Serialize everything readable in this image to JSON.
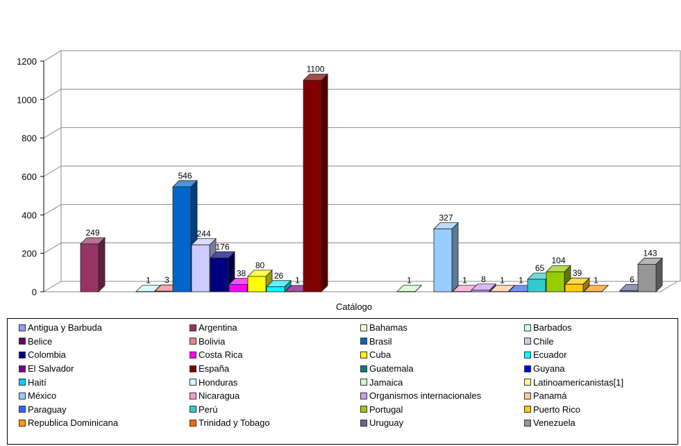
{
  "chart_data": {
    "type": "bar",
    "xlabel": "Catálogo",
    "ylabel": "",
    "ylim": [
      0,
      1200
    ],
    "yticks": [
      0,
      200,
      400,
      600,
      800,
      1000,
      1200
    ],
    "grid": true,
    "legend_position": "bottom",
    "series": [
      {
        "name": "Antigua y Barbuda",
        "value": 0,
        "color": "#9999FF",
        "label": ""
      },
      {
        "name": "Argentina",
        "value": 249,
        "color": "#993366",
        "label": "249"
      },
      {
        "name": "Bahamas",
        "value": 0,
        "color": "#FFFFCC",
        "label": ""
      },
      {
        "name": "Barbados",
        "value": 1,
        "color": "#CCFFFF",
        "label": "1"
      },
      {
        "name": "Belice",
        "value": 0,
        "color": "#660066",
        "label": ""
      },
      {
        "name": "Bolivia",
        "value": 3,
        "color": "#FF8080",
        "label": "3"
      },
      {
        "name": "Brasil",
        "value": 546,
        "color": "#0066CC",
        "label": "546"
      },
      {
        "name": "Chile",
        "value": 244,
        "color": "#CCCCFF",
        "label": "244"
      },
      {
        "name": "Colombia",
        "value": 176,
        "color": "#000080",
        "label": "176"
      },
      {
        "name": "Costa Rica",
        "value": 38,
        "color": "#FF00FF",
        "label": "38"
      },
      {
        "name": "Cuba",
        "value": 80,
        "color": "#FFFF00",
        "label": "80"
      },
      {
        "name": "Ecuador",
        "value": 26,
        "color": "#00FFFF",
        "label": "26"
      },
      {
        "name": "El Salvador",
        "value": 1,
        "color": "#800080",
        "label": "1"
      },
      {
        "name": "España",
        "value": 1100,
        "color": "#800000",
        "label": "1100"
      },
      {
        "name": "Guatemala",
        "value": 0,
        "color": "#008080",
        "label": ""
      },
      {
        "name": "Guyana",
        "value": 0,
        "color": "#0000FF",
        "label": ""
      },
      {
        "name": "Haití",
        "value": 0,
        "color": "#00CCFF",
        "label": ""
      },
      {
        "name": "Honduras",
        "value": 0,
        "color": "#CCFFFF",
        "label": ""
      },
      {
        "name": "Jamaica",
        "value": 1,
        "color": "#CCFFCC",
        "label": "1"
      },
      {
        "name": "Latinoamericanistas[1]",
        "value": 0,
        "color": "#FFFF99",
        "label": ""
      },
      {
        "name": "México",
        "value": 327,
        "color": "#99CCFF",
        "label": "327"
      },
      {
        "name": "Nicaragua",
        "value": 1,
        "color": "#FF99CC",
        "label": "1"
      },
      {
        "name": "Organismos internacionales",
        "value": 8,
        "color": "#CC99FF",
        "label": "8"
      },
      {
        "name": "Panamá",
        "value": 1,
        "color": "#FFCC99",
        "label": "1"
      },
      {
        "name": "Paraguay",
        "value": 1,
        "color": "#3366FF",
        "label": "1"
      },
      {
        "name": "Perú",
        "value": 65,
        "color": "#33CCCC",
        "label": "65"
      },
      {
        "name": "Portugal",
        "value": 104,
        "color": "#99CC00",
        "label": "104"
      },
      {
        "name": "Puerto Rico",
        "value": 39,
        "color": "#FFCC00",
        "label": "39"
      },
      {
        "name": "Republica Dominicana",
        "value": 1,
        "color": "#FF9900",
        "label": "1"
      },
      {
        "name": "Trinidad y Tobago",
        "value": 0,
        "color": "#FF6600",
        "label": ""
      },
      {
        "name": "Uruguay",
        "value": 6,
        "color": "#666699",
        "label": "6"
      },
      {
        "name": "Venezuela",
        "value": 143,
        "color": "#969696",
        "label": "143"
      }
    ]
  }
}
